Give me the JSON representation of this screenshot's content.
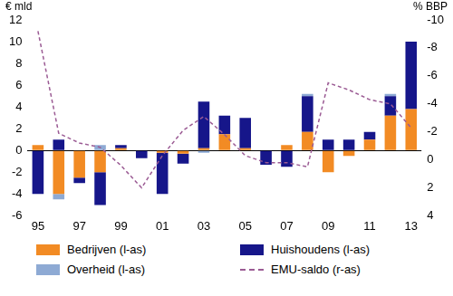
{
  "chart_data": {
    "type": "bar",
    "stacked": true,
    "ylabel": "€ mld",
    "y2label": "% BBP",
    "categories": [
      "95",
      null,
      "97",
      null,
      "99",
      null,
      "01",
      null,
      "03",
      null,
      "05",
      null,
      "07",
      null,
      "09",
      null,
      "11",
      null,
      "13"
    ],
    "ylim": [
      -6,
      12
    ],
    "yticks": [
      -6,
      -4,
      -2,
      0,
      2,
      4,
      6,
      8,
      10,
      12
    ],
    "y2lim": [
      4,
      -10
    ],
    "y2ticks": [
      -10,
      -8,
      -6,
      -4,
      -2,
      0,
      2,
      4
    ],
    "grid": false,
    "legend": "bottom",
    "series": [
      {
        "name": "Bedrijven (l-as)",
        "color": "#f28b24",
        "values": [
          0.5,
          -4.0,
          -2.5,
          -2.0,
          0.2,
          0.0,
          -0.2,
          -0.3,
          0.2,
          1.5,
          0.2,
          0.0,
          0.5,
          1.7,
          -2.0,
          -0.5,
          1.0,
          3.2,
          3.8
        ]
      },
      {
        "name": "Huishoudens (l-as)",
        "color": "#16168a",
        "values": [
          -4.0,
          1.0,
          -0.5,
          -3.0,
          0.3,
          -0.7,
          -3.8,
          -0.9,
          4.3,
          1.7,
          2.8,
          -1.3,
          -1.5,
          3.3,
          1.0,
          1.0,
          0.7,
          1.8,
          6.2
        ]
      },
      {
        "name": "Overheid (l-as)",
        "color": "#8eaad4",
        "values": [
          0.0,
          -0.5,
          0.0,
          0.5,
          0.0,
          0.0,
          0.0,
          0.0,
          -0.2,
          0.0,
          0.0,
          0.0,
          0.0,
          0.2,
          0.0,
          0.0,
          0.0,
          0.2,
          0.0
        ]
      },
      {
        "name": "EMU-saldo (r-as)",
        "type": "line",
        "axis": "y2",
        "line_style": "dashed",
        "color": "#9b5b94",
        "values": [
          -9.2,
          -1.9,
          -1.2,
          -0.9,
          0.4,
          2.0,
          -0.3,
          -2.1,
          -3.1,
          -1.8,
          -0.3,
          0.2,
          0.2,
          0.5,
          -5.5,
          -5.0,
          -4.3,
          -4.0,
          -2.3
        ]
      }
    ]
  }
}
